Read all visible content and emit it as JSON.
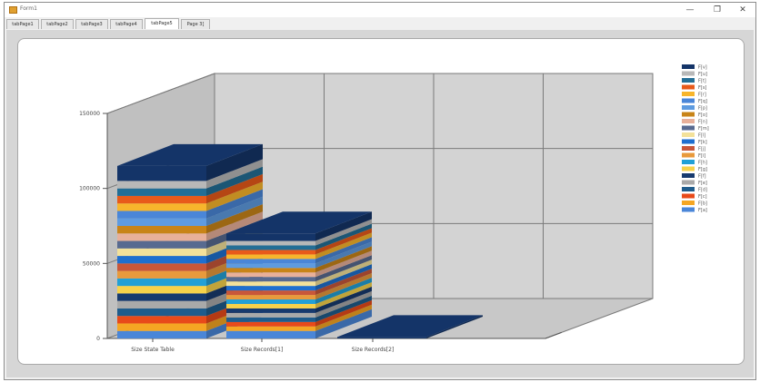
{
  "window": {
    "title": "Form1",
    "minimize_label": "—",
    "maximize_label": "❐",
    "close_label": "✕"
  },
  "tabs": [
    {
      "label": "tabPage1",
      "active": false
    },
    {
      "label": "tabPage2",
      "active": false
    },
    {
      "label": "tabPage3",
      "active": false
    },
    {
      "label": "tabPage4",
      "active": false
    },
    {
      "label": "tabPage5",
      "active": true
    },
    {
      "label": "Page 3]",
      "active": false
    }
  ],
  "colors": {
    "window_bg": "#f0f0f0",
    "chart_wall": "#d3d3d3",
    "chart_side_wall": "#c0c0c0",
    "chart_floor": "#c8c8c8",
    "gridline": "#7a7a7a"
  },
  "chart_data": {
    "type": "bar",
    "categories": [
      "Size State Table",
      "Size Records[1]",
      "Size Records[2]"
    ],
    "ylim": [
      0,
      150000
    ],
    "yticks": [
      0,
      50000,
      100000,
      150000
    ],
    "ytick_labels": [
      "0",
      "50000",
      "100000",
      "150000"
    ],
    "grid": true,
    "legend_position": "right",
    "stacked": true,
    "three_d": true,
    "series": [
      {
        "name": "F[a]",
        "color": "#4a86d8",
        "values": [
          5000,
          5000,
          0
        ]
      },
      {
        "name": "F[b]",
        "color": "#f5a623",
        "values": [
          5000,
          3000,
          0
        ]
      },
      {
        "name": "F[c]",
        "color": "#e84a1a",
        "values": [
          5000,
          3000,
          0
        ]
      },
      {
        "name": "F[d]",
        "color": "#1f5c8c",
        "values": [
          5000,
          3000,
          0
        ]
      },
      {
        "name": "F[e]",
        "color": "#a9a9a9",
        "values": [
          5000,
          3000,
          0
        ]
      },
      {
        "name": "F[f]",
        "color": "#173a6e",
        "values": [
          5000,
          3000,
          0
        ]
      },
      {
        "name": "F[g]",
        "color": "#f7d24a",
        "values": [
          5000,
          3000,
          0
        ]
      },
      {
        "name": "F[h]",
        "color": "#22a0d6",
        "values": [
          5000,
          3000,
          0
        ]
      },
      {
        "name": "F[i]",
        "color": "#e89a3c",
        "values": [
          5000,
          3000,
          0
        ]
      },
      {
        "name": "F[j]",
        "color": "#c8573a",
        "values": [
          5000,
          3000,
          0
        ]
      },
      {
        "name": "F[k]",
        "color": "#1e6fcf",
        "values": [
          5000,
          3000,
          0
        ]
      },
      {
        "name": "F[l]",
        "color": "#f3e19a",
        "values": [
          5000,
          3000,
          0
        ]
      },
      {
        "name": "F[m]",
        "color": "#586a90",
        "values": [
          5000,
          3000,
          0
        ]
      },
      {
        "name": "F[n]",
        "color": "#e8b09a",
        "values": [
          5000,
          3000,
          0
        ]
      },
      {
        "name": "F[o]",
        "color": "#c88418",
        "values": [
          5000,
          3000,
          0
        ]
      },
      {
        "name": "F[p]",
        "color": "#5e9be0",
        "values": [
          5000,
          3000,
          0
        ]
      },
      {
        "name": "F[q]",
        "color": "#4a86d8",
        "values": [
          5000,
          3000,
          0
        ]
      },
      {
        "name": "F[r]",
        "color": "#f7b52c",
        "values": [
          5000,
          3000,
          0
        ]
      },
      {
        "name": "F[s]",
        "color": "#e85a1a",
        "values": [
          5000,
          3000,
          0
        ]
      },
      {
        "name": "F[t]",
        "color": "#236e96",
        "values": [
          5000,
          3000,
          0
        ]
      },
      {
        "name": "F[u]",
        "color": "#b8b8b8",
        "values": [
          5000,
          3000,
          0
        ]
      },
      {
        "name": "F[v]",
        "color": "#143468",
        "values": [
          10000,
          5000,
          1000
        ]
      }
    ]
  }
}
